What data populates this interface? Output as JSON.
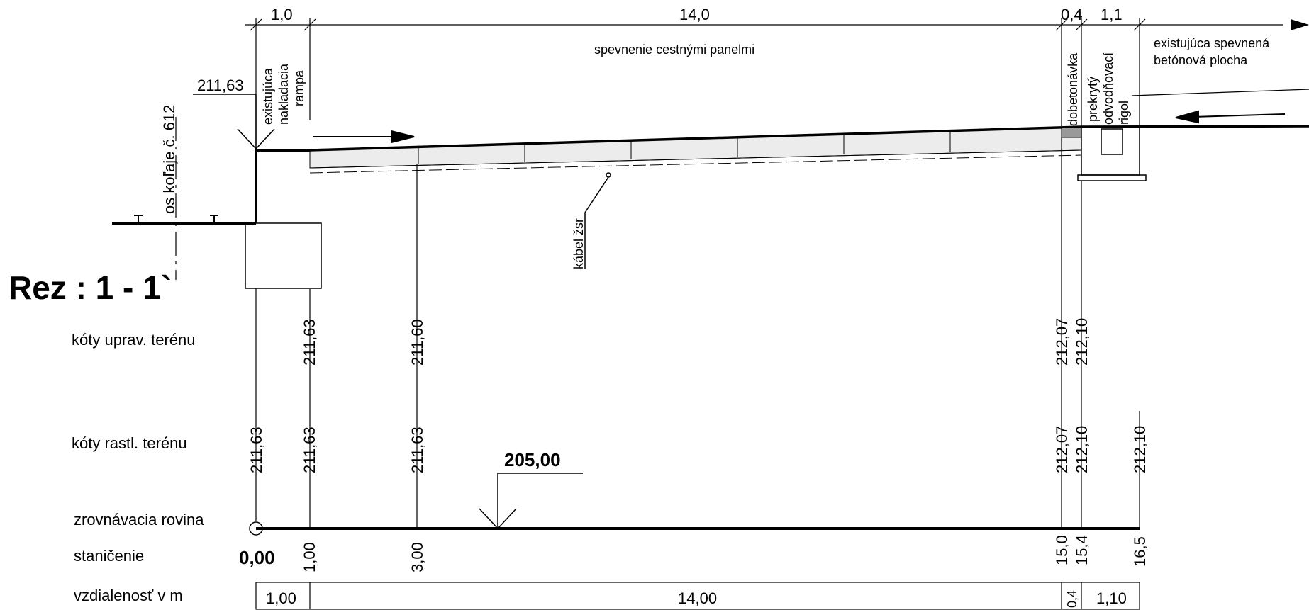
{
  "title": "Rez : 1 - 1`",
  "top_dims": {
    "d1": "1,0",
    "d2": "14,0",
    "d3": "0,4",
    "d4": "1,1"
  },
  "labels": {
    "panels": "spevnenie cestnými panelmi",
    "existing_area_1": "existujúca spevnená",
    "existing_area_2": "betónová plocha",
    "ramp_1": "existujúca",
    "ramp_2": "nakladacia",
    "ramp_3": "rampa",
    "dobetonavka": "dobetonávka",
    "rigol_1": "prekrytý",
    "rigol_2": "odvodňovací",
    "rigol_3": "rigol",
    "track_axis": "os koľaje č. 612",
    "cable": "kábel žsr",
    "ramp_level": "211,63"
  },
  "rows": {
    "upraveny": "kóty uprav. terénu",
    "rastly": "kóty rastl. terénu",
    "rovina": "zrovnávacia rovina",
    "stanicenie": "staničenie",
    "vzdialenost": "vzdialenosť v m"
  },
  "datum_level": "205,00",
  "start_station": "0,00",
  "upraveny_values": [
    "211,63",
    "211,60",
    "212,07",
    "212,10"
  ],
  "rastly_values": [
    "211,63",
    "211,63",
    "211,63",
    "212,07",
    "212,10",
    "212,10"
  ],
  "stations": [
    "1,00",
    "3,00",
    "15,0",
    "15,4",
    "16,5"
  ],
  "distances": [
    "1,00",
    "14,00",
    "0,4",
    "1,10"
  ]
}
